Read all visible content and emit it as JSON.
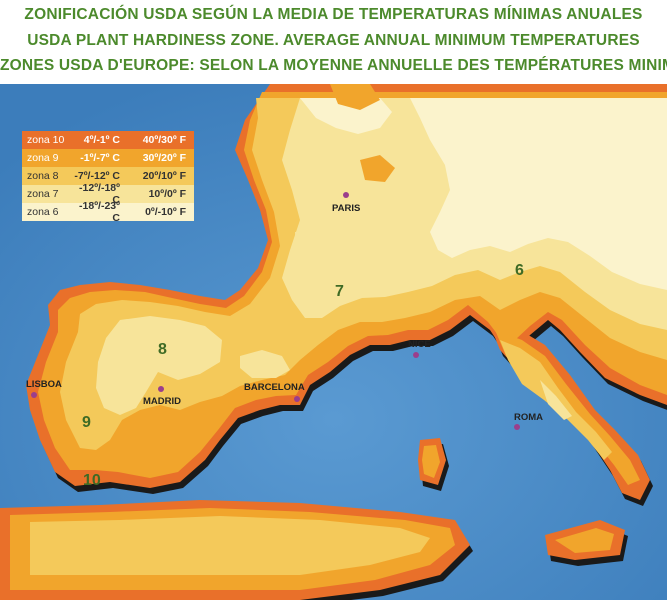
{
  "titles": [
    "ZONIFICACIÓN USDA SEGÚN LA MEDIA DE TEMPERATURAS MÍNIMAS ANUALES",
    "USDA PLANT HARDINESS ZONE. AVERAGE ANNUAL MINIMUM TEMPERATURES",
    "ZONES USDA D'EUROPE: SELON LA MOYENNE ANNUELLE DES TEMPÉRATURES MINIMA"
  ],
  "legend": [
    {
      "zone": "zona 10",
      "celsius": "4º/-1º C",
      "fahrenheit": "40º/30º F",
      "color": "#e9702a",
      "text_color": "#ffffff"
    },
    {
      "zone": "zona 9",
      "celsius": "-1º/-7º C",
      "fahrenheit": "30º/20º F",
      "color": "#f1a52c",
      "text_color": "#ffffff"
    },
    {
      "zone": "zona 8",
      "celsius": "-7º/-12º C",
      "fahrenheit": "20º/10º F",
      "color": "#f4c95a",
      "text_color": "#333333"
    },
    {
      "zone": "zona 7",
      "celsius": "-12º/-18º C",
      "fahrenheit": "10º/0º F",
      "color": "#f7e49a",
      "text_color": "#333333"
    },
    {
      "zone": "zona 6",
      "celsius": "-18º/-23º C",
      "fahrenheit": "0º/-10º F",
      "color": "#fbf3cc",
      "text_color": "#333333"
    }
  ],
  "zone_labels": {
    "z6": "6",
    "z7": "7",
    "z8": "8",
    "z9": "9",
    "z10": "10"
  },
  "cities": {
    "paris": "PARIS",
    "nice": "NICE",
    "lisboa": "LISBOA",
    "madrid": "MADRID",
    "barcelona": "BARCELONA",
    "roma": "ROMA"
  },
  "colors": {
    "title": "#4c8a2c",
    "sea": "#4a8cc6",
    "zone10": "#e9702a",
    "zone9": "#f1a52c",
    "zone8": "#f4c95a",
    "zone7": "#f7e49a",
    "zone6": "#fbf3cc",
    "city_dot": "#9b3e8c"
  }
}
